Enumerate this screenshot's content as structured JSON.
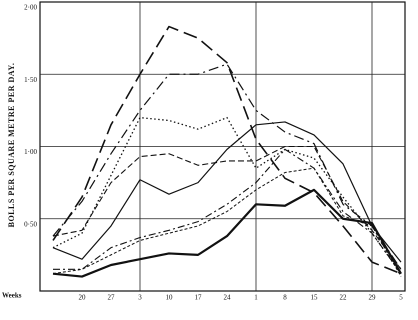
{
  "chart_data": {
    "type": "line",
    "y_label": "BOLLS PER SQUARE METRE PER DAY.",
    "x_label": "Weeks",
    "categories": [
      null,
      "20",
      "27",
      "3",
      "10",
      "17",
      "24",
      "1",
      "8",
      "15",
      "22",
      "29",
      "5"
    ],
    "ylim": [
      0,
      2
    ],
    "yticks": [
      {
        "value": 0.5,
        "label": "0·50"
      },
      {
        "value": 1,
        "label": "1·00"
      },
      {
        "value": 1.5,
        "label": "1·50"
      },
      {
        "value": 2,
        "label": "2·00"
      }
    ],
    "grid": true,
    "series": [
      {
        "color": "#111111",
        "values": [
          0.35,
          0.65,
          1.15,
          1.5,
          1.83,
          1.75,
          1.58,
          1.05,
          0.78,
          0.68,
          0.45,
          0.2,
          0.12
        ]
      },
      {
        "color": "#111111",
        "values": [
          0.38,
          0.62,
          0.95,
          1.25,
          1.5,
          1.5,
          1.57,
          1.25,
          1.1,
          1.02,
          0.6,
          0.45,
          0.15
        ]
      },
      {
        "color": "#111111",
        "values": [
          0.3,
          0.4,
          0.8,
          1.2,
          1.18,
          1.12,
          1.2,
          0.85,
          0.98,
          0.92,
          0.65,
          0.4,
          0.12
        ]
      },
      {
        "color": "#111111",
        "values": [
          0.38,
          0.42,
          0.75,
          0.93,
          0.95,
          0.87,
          0.9,
          0.9,
          1.0,
          1.0,
          0.62,
          0.42,
          0.15
        ]
      },
      {
        "color": "#111111",
        "values": [
          0.3,
          0.22,
          0.45,
          0.77,
          0.67,
          0.75,
          0.98,
          1.15,
          1.17,
          1.08,
          0.88,
          0.45,
          0.2
        ]
      },
      {
        "color": "#111111",
        "values": [
          0.15,
          0.15,
          0.3,
          0.37,
          0.42,
          0.48,
          0.6,
          0.75,
          0.98,
          0.85,
          0.55,
          0.4,
          0.12
        ]
      },
      {
        "color": "#111111",
        "values": [
          0.12,
          0.15,
          0.25,
          0.35,
          0.4,
          0.45,
          0.55,
          0.7,
          0.82,
          0.85,
          0.52,
          0.45,
          0.1
        ]
      },
      {
        "color": "#111111",
        "values": [
          0.12,
          0.1,
          0.18,
          0.22,
          0.26,
          0.25,
          0.38,
          0.6,
          0.59,
          0.7,
          0.5,
          0.47,
          0.12
        ]
      }
    ]
  }
}
